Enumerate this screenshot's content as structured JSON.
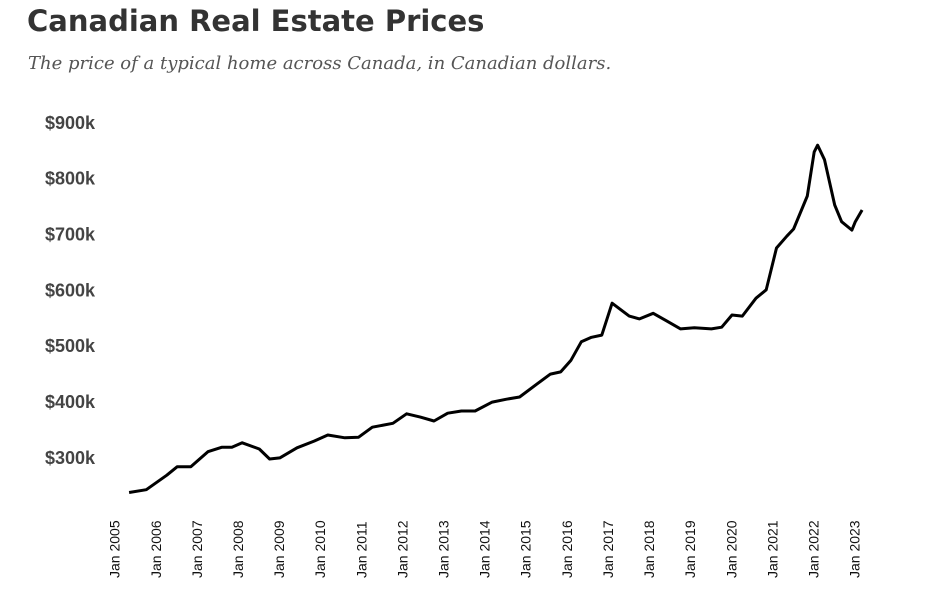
{
  "chart_data": {
    "type": "line",
    "title": "Canadian Real Estate Prices",
    "subtitle": "The price of a typical home across Canada, in Canadian dollars.",
    "x": [
      "2005-06",
      "2005-11",
      "2006-05",
      "2006-08",
      "2006-12",
      "2007-05",
      "2007-09",
      "2007-12",
      "2008-03",
      "2008-08",
      "2008-11",
      "2009-02",
      "2009-07",
      "2009-12",
      "2010-04",
      "2010-09",
      "2011-01",
      "2011-05",
      "2011-11",
      "2012-03",
      "2012-07",
      "2012-11",
      "2013-03",
      "2013-07",
      "2013-11",
      "2014-04",
      "2014-08",
      "2014-12",
      "2015-05",
      "2015-09",
      "2015-12",
      "2016-03",
      "2016-06",
      "2016-09",
      "2016-12",
      "2017-03",
      "2017-08",
      "2017-11",
      "2018-03",
      "2018-07",
      "2018-11",
      "2019-03",
      "2019-08",
      "2019-11",
      "2020-02",
      "2020-05",
      "2020-09",
      "2020-12",
      "2021-03",
      "2021-06",
      "2021-08",
      "2021-12",
      "2022-02",
      "2022-03",
      "2022-05",
      "2022-08",
      "2022-10",
      "2023-01",
      "2023-02",
      "2023-04"
    ],
    "series": [
      {
        "color": "#000000",
        "values": [
          240000,
          245000,
          271000,
          286000,
          286000,
          313000,
          321000,
          321000,
          329000,
          318000,
          300000,
          302000,
          320000,
          332000,
          343000,
          338000,
          339000,
          357000,
          364000,
          381000,
          375000,
          368000,
          382000,
          386000,
          386000,
          402000,
          407000,
          411000,
          434000,
          452000,
          456000,
          477000,
          510000,
          518000,
          522000,
          579000,
          556000,
          551000,
          561000,
          547000,
          533000,
          535000,
          533000,
          536000,
          558000,
          556000,
          588000,
          603000,
          678000,
          699000,
          712000,
          771000,
          850000,
          862000,
          836000,
          755000,
          725000,
          710000,
          725000,
          746000
        ]
      }
    ],
    "xlim": [
      "2005-01",
      "2023-06"
    ],
    "xticks": [
      {
        "value": "2005-01",
        "label": "Jan 2005"
      },
      {
        "value": "2006-01",
        "label": "Jan 2006"
      },
      {
        "value": "2007-01",
        "label": "Jan 2007"
      },
      {
        "value": "2008-01",
        "label": "Jan 2008"
      },
      {
        "value": "2009-01",
        "label": "Jan 2009"
      },
      {
        "value": "2010-01",
        "label": "Jan 2010"
      },
      {
        "value": "2011-01",
        "label": "Jan 2011"
      },
      {
        "value": "2012-01",
        "label": "Jan 2012"
      },
      {
        "value": "2013-01",
        "label": "Jan 2013"
      },
      {
        "value": "2014-01",
        "label": "Jan 2014"
      },
      {
        "value": "2015-01",
        "label": "Jan 2015"
      },
      {
        "value": "2016-01",
        "label": "Jan 2016"
      },
      {
        "value": "2017-01",
        "label": "Jan 2017"
      },
      {
        "value": "2018-01",
        "label": "Jan 2018"
      },
      {
        "value": "2019-01",
        "label": "Jan 2019"
      },
      {
        "value": "2020-01",
        "label": "Jan 2020"
      },
      {
        "value": "2021-01",
        "label": "Jan 2021"
      },
      {
        "value": "2022-01",
        "label": "Jan 2022"
      },
      {
        "value": "2023-01",
        "label": "Jan 2023"
      }
    ],
    "ylim": [
      235000,
      900000
    ],
    "yticks": [
      {
        "value": 300000,
        "label": "$300k"
      },
      {
        "value": 400000,
        "label": "$400k"
      },
      {
        "value": 500000,
        "label": "$500k"
      },
      {
        "value": 600000,
        "label": "$600k"
      },
      {
        "value": 700000,
        "label": "$700k"
      },
      {
        "value": 800000,
        "label": "$800k"
      },
      {
        "value": 900000,
        "label": "$900k"
      }
    ],
    "grid": false
  }
}
